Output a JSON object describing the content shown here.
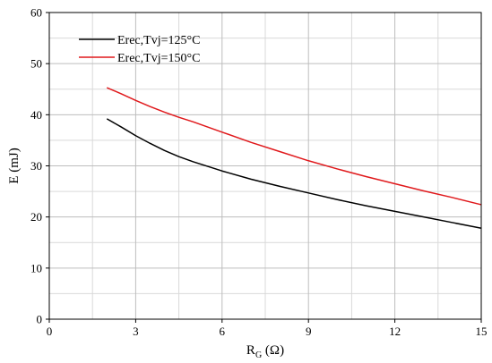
{
  "chart_data": {
    "type": "line",
    "title": "",
    "xlabel": "RG (Ω)",
    "xlabel_main": "R",
    "xlabel_sub": "G",
    "xlabel_unit": " (Ω)",
    "ylabel": "E (mJ)",
    "xlim": [
      0,
      15
    ],
    "ylim": [
      0,
      60
    ],
    "x_ticks": [
      0,
      3,
      6,
      9,
      12,
      15
    ],
    "y_ticks": [
      0,
      10,
      20,
      30,
      40,
      50,
      60
    ],
    "x_minor_step": 1.5,
    "y_minor_step": 5,
    "grid": true,
    "legend_position": "top-left",
    "series": [
      {
        "name": "Erec,Tvj=125°C",
        "color": "#000000",
        "x": [
          2,
          2.5,
          3,
          3.5,
          4,
          4.5,
          5,
          6,
          7,
          8,
          9,
          10,
          11,
          12,
          13,
          14,
          15
        ],
        "y": [
          39.2,
          37.6,
          35.9,
          34.4,
          33.0,
          31.8,
          30.8,
          29.0,
          27.4,
          26.0,
          24.7,
          23.4,
          22.2,
          21.1,
          20.0,
          18.9,
          17.8
        ]
      },
      {
        "name": "Erec,Tvj=150°C",
        "color": "#e0191c",
        "x": [
          2,
          2.5,
          3,
          3.5,
          4,
          4.5,
          5,
          6,
          7,
          8,
          9,
          10,
          11,
          12,
          13,
          14,
          15
        ],
        "y": [
          45.3,
          44.1,
          42.8,
          41.6,
          40.5,
          39.5,
          38.6,
          36.6,
          34.6,
          32.8,
          31.0,
          29.4,
          27.9,
          26.5,
          25.1,
          23.8,
          22.4
        ]
      }
    ]
  }
}
